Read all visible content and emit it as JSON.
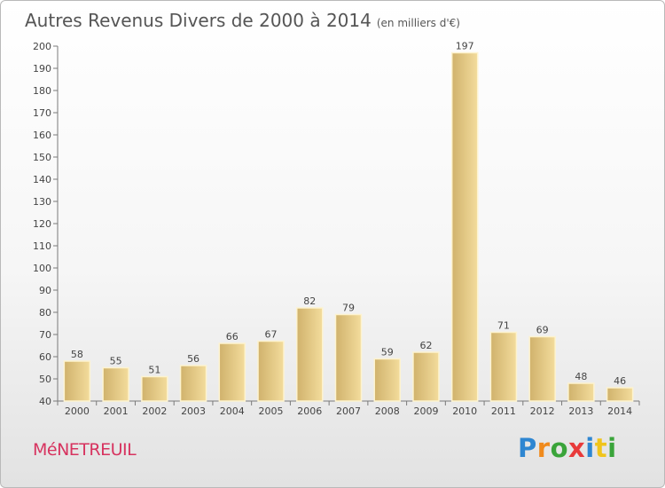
{
  "chart_data": {
    "type": "bar",
    "title": "Autres Revenus Divers de 2000 à 2014",
    "subtitle": "(en milliers d'€)",
    "categories": [
      "2000",
      "2001",
      "2002",
      "2003",
      "2004",
      "2005",
      "2006",
      "2007",
      "2008",
      "2009",
      "2010",
      "2011",
      "2012",
      "2013",
      "2014"
    ],
    "values": [
      58,
      55,
      51,
      56,
      66,
      67,
      82,
      79,
      59,
      62,
      197,
      71,
      69,
      48,
      46
    ],
    "ylim": [
      40,
      200
    ],
    "yticks": [
      40,
      50,
      60,
      70,
      80,
      90,
      100,
      110,
      120,
      130,
      140,
      150,
      160,
      170,
      180,
      190,
      200
    ],
    "grid": false,
    "colors": {
      "bar_light": "#f3dc9c",
      "bar_dark": "#d0b26c",
      "bar_edge": "#fdf3cf"
    }
  },
  "footer": {
    "commune": "MéNETREUIL",
    "brand_letters": [
      {
        "ch": "P",
        "color": "#2e86d1"
      },
      {
        "ch": "r",
        "color": "#f08a1c"
      },
      {
        "ch": "o",
        "color": "#3aa43a"
      },
      {
        "ch": "x",
        "color": "#e83a3a"
      },
      {
        "ch": "i",
        "color": "#2e86d1"
      },
      {
        "ch": "t",
        "color": "#f0c41c"
      },
      {
        "ch": "i",
        "color": "#3aa43a"
      }
    ]
  }
}
